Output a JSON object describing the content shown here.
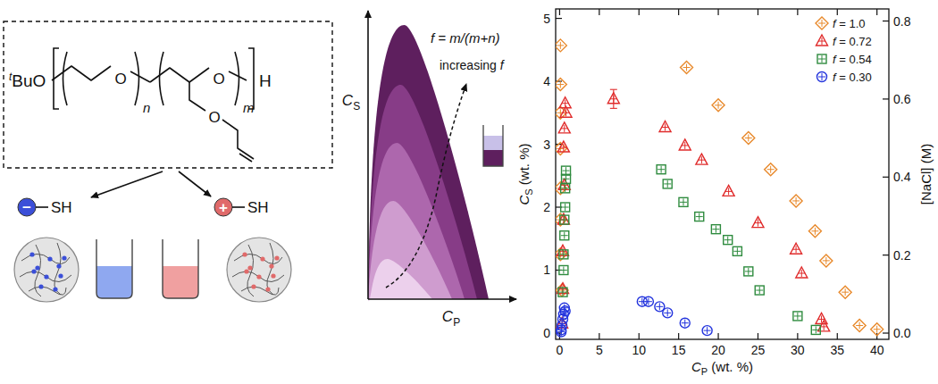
{
  "schematic": {
    "polymer": {
      "end_group": "tBuO",
      "oxygen": "O",
      "repeat_n": "n",
      "repeat_m": "m",
      "end": "H"
    },
    "thiols": [
      {
        "charge": "−",
        "label": "SH"
      },
      {
        "charge": "+",
        "label": "SH"
      }
    ],
    "phase_diagram": {
      "fraction": "f = m/(m+n)",
      "arrow_label": "increasing f",
      "y_label": "CS",
      "x_label": "CP"
    }
  },
  "chart_data": {
    "type": "scatter",
    "x_label": "CP (wt. %)",
    "y_label": "CS (wt. %)",
    "y2_label": "[NaCl] (M)",
    "xlim": [
      -0.5,
      41.5
    ],
    "xticks": [
      0,
      5,
      10,
      15,
      20,
      25,
      30,
      35,
      40
    ],
    "ylim": [
      -0.1,
      5.15
    ],
    "yticks": [
      0,
      1,
      2,
      3,
      4,
      5
    ],
    "y2lim": [
      -0.016,
      0.831
    ],
    "y2ticks": [
      {
        "value": 0,
        "label": "0.0"
      },
      0.2,
      0.4,
      0.6,
      0.8
    ],
    "grid": false,
    "legend": "top-right",
    "series": [
      {
        "name": "f = 1.0",
        "color": "#e8892b",
        "marker": "diamond",
        "x": [
          0.1,
          0.1,
          0.1,
          0.1,
          0.1,
          0.1,
          0.1,
          0.3,
          16,
          20,
          23.8,
          26.6,
          29.8,
          32.2,
          33.6,
          36,
          37.8,
          40
        ],
        "values": [
          4.57,
          3.95,
          3.5,
          2.93,
          2.3,
          1.8,
          1.25,
          0.68,
          4.22,
          3.62,
          3.1,
          2.6,
          2.1,
          1.62,
          1.15,
          0.65,
          0.12,
          0.06
        ]
      },
      {
        "name": "f = 0.72",
        "color": "#e02b2b",
        "marker": "triangle",
        "x": [
          0.7,
          0.8,
          0.6,
          0.5,
          0.6,
          0.5,
          0.4,
          0.4,
          0.3,
          6.8,
          13.3,
          15.8,
          17.9,
          21.3,
          25,
          29.8,
          30.5,
          33,
          33.3
        ],
        "values": [
          3.65,
          3.5,
          3.25,
          2.95,
          2.35,
          1.8,
          1.3,
          0.7,
          0.15,
          3.72,
          3.27,
          2.98,
          2.75,
          2.25,
          1.75,
          1.33,
          0.95,
          0.22,
          0.1
        ],
        "errors": [
          null,
          null,
          null,
          null,
          null,
          null,
          null,
          null,
          null,
          0.15,
          null,
          null,
          null,
          null,
          null,
          null,
          null,
          null,
          null
        ]
      },
      {
        "name": "f = 0.54",
        "color": "#2e8b3e",
        "marker": "square",
        "x": [
          0.8,
          0.8,
          0.7,
          0.7,
          0.6,
          0.6,
          0.5,
          0.5,
          0.4,
          12.8,
          13.6,
          15.6,
          17.6,
          19.7,
          21.2,
          22.4,
          23.8,
          25.2,
          30,
          32.3
        ],
        "values": [
          2.58,
          2.45,
          2.3,
          2.0,
          1.8,
          1.55,
          1.25,
          1.0,
          0.65,
          2.6,
          2.37,
          2.08,
          1.85,
          1.65,
          1.48,
          1.3,
          0.98,
          0.68,
          0.27,
          0.05
        ]
      },
      {
        "name": "f = 0.30",
        "color": "#2233dd",
        "marker": "circle",
        "x": [
          0.6,
          0.7,
          0.5,
          0.4,
          0.3,
          0.2,
          0.2,
          10.4,
          11.2,
          12.6,
          13.6,
          15.8,
          18.6
        ],
        "values": [
          0.4,
          0.35,
          0.3,
          0.22,
          0.12,
          0.05,
          0.02,
          0.5,
          0.5,
          0.42,
          0.32,
          0.16,
          0.04
        ]
      }
    ]
  }
}
